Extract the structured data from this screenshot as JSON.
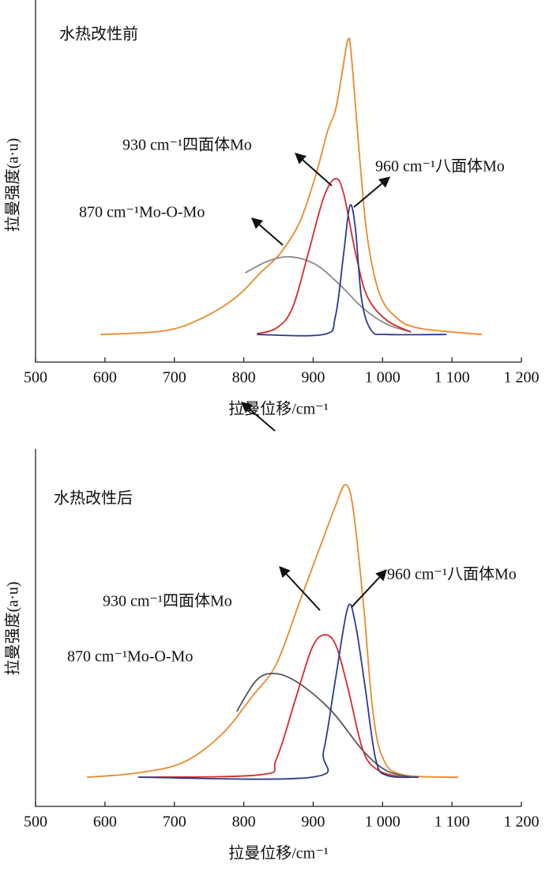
{
  "chart_data": [
    {
      "type": "line",
      "title": "水热改性前",
      "xlabel": "拉曼位移/cm⁻¹",
      "ylabel": "拉曼强度(a·u)",
      "xlim": [
        500,
        1200
      ],
      "ylim": [
        0,
        100
      ],
      "xticks": [
        500,
        600,
        700,
        800,
        900,
        {
          "value": 1000,
          "label": "1 000"
        },
        {
          "value": 1100,
          "label": "1 100"
        },
        {
          "value": 1200,
          "label": "1 200"
        }
      ],
      "annotations": [
        "930 cm⁻¹四面体Mo",
        "960 cm⁻¹八面体Mo",
        "870 cm⁻¹Mo-O-Mo"
      ],
      "series": [
        {
          "color": "#e8892b",
          "x": [
            594,
            688,
            745,
            790,
            824,
            853,
            881,
            904,
            921,
            932,
            942,
            950,
            955,
            967,
            978,
            995,
            1018,
            1052,
            1143
          ],
          "values": [
            7.8,
            8.9,
            12.9,
            18.5,
            25.2,
            30.8,
            39.7,
            53,
            65.4,
            71,
            82,
            91,
            86.6,
            57.6,
            35.3,
            19.6,
            12.9,
            9.6,
            7.8
          ]
        },
        {
          "color": "#8a8a8a",
          "x": [
            802,
            836,
            868,
            904,
            938,
            972,
            1006,
            1041
          ],
          "values": [
            25.2,
            28.6,
            29.7,
            27.5,
            21.9,
            15.2,
            10.7,
            8.5
          ]
        },
        {
          "color": "#d82a2a",
          "x": [
            819,
            847,
            870,
            893,
            915,
            932,
            944,
            961,
            978,
            1006,
            1041
          ],
          "values": [
            8,
            9.6,
            15.2,
            30.8,
            46.4,
            51.8,
            47.5,
            30.8,
            18.5,
            11.8,
            8.5
          ]
        },
        {
          "color": "#2e3a8c",
          "x": [
            819,
            915,
            932,
            944,
            953,
            961,
            970,
            984,
            1006,
            1092
          ],
          "values": [
            7.8,
            7.8,
            12.9,
            30.8,
            44.2,
            37.5,
            17.4,
            8.9,
            7.8,
            7.8
          ]
        }
      ]
    },
    {
      "type": "line",
      "title": "水热改性后",
      "xlabel": "拉曼位移/cm⁻¹",
      "ylabel": "拉曼强度(a·u)",
      "xlim": [
        500,
        1200
      ],
      "ylim": [
        0,
        100
      ],
      "xticks": [
        500,
        600,
        700,
        800,
        900,
        {
          "value": 1000,
          "label": "1 000"
        },
        {
          "value": 1100,
          "label": "1 100"
        },
        {
          "value": 1200,
          "label": "1 200"
        }
      ],
      "annotations": [
        "960 cm⁻¹八面体Mo",
        "930 cm⁻¹四面体Mo",
        "870 cm⁻¹Mo-O-Mo"
      ],
      "series": [
        {
          "color": "#e8892b",
          "x": [
            574,
            642,
            711,
            767,
            813,
            847,
            881,
            915,
            932,
            946,
            957,
            972,
            986,
            1001,
            1029,
            1109
          ],
          "values": [
            8.2,
            9.3,
            12.2,
            20,
            31.1,
            40,
            57.8,
            75.6,
            84.4,
            90.4,
            84.4,
            57.8,
            26.7,
            13.3,
            8.9,
            8.2
          ]
        },
        {
          "color": "#555555",
          "x": [
            790,
            819,
            847,
            881,
            927,
            972,
            1006,
            1041
          ],
          "values": [
            26.7,
            35.6,
            37.3,
            34.4,
            26.7,
            15.6,
            10,
            8.2
          ]
        },
        {
          "color": "#d82a2a",
          "x": [
            648,
            824,
            847,
            876,
            898,
            915,
            932,
            950,
            972,
            995,
            1029
          ],
          "values": [
            8.2,
            8.9,
            13.3,
            31.1,
            44.4,
            48.2,
            45.6,
            33.3,
            15.6,
            10,
            8.2
          ]
        },
        {
          "color": "#2e3a8c",
          "x": [
            648,
            898,
            915,
            932,
            950,
            961,
            975,
            990,
            1006,
            1052
          ],
          "values": [
            8.2,
            8.2,
            15.6,
            35.6,
            56,
            51.1,
            33.3,
            13.3,
            8.7,
            8.2
          ]
        }
      ]
    }
  ]
}
